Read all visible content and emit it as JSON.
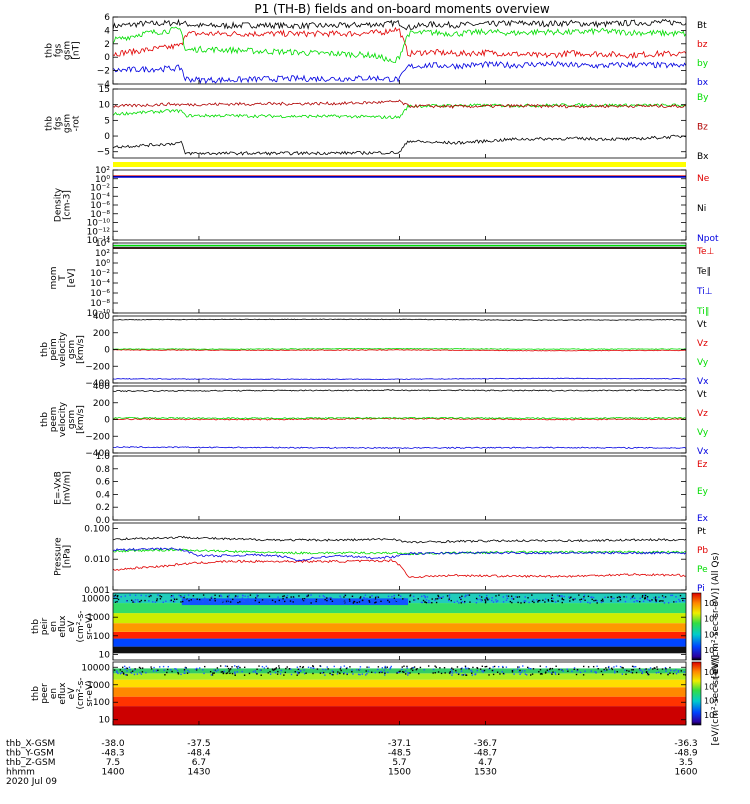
{
  "title": "P1 (TH-B) fields and on-board moments overview",
  "chart_data": [
    {
      "id": "fgs",
      "type": "line",
      "ylabel": [
        "thb",
        "fgs",
        "gsm",
        "[nT]"
      ],
      "ylim": [
        -4,
        6
      ],
      "yticks": [
        -4,
        -2,
        0,
        2,
        4,
        6
      ],
      "ytick_labels": [
        "−4",
        "−2",
        "0",
        "2",
        "4",
        "6"
      ],
      "series": [
        {
          "name": "Bt",
          "color": "#000000",
          "x": [
            1400,
            1405,
            1410,
            1415,
            1420,
            1424,
            1425,
            1430,
            1440,
            1450,
            1460,
            1470,
            1480,
            1490,
            1495,
            1498,
            1500,
            1503,
            1510,
            1520,
            1530,
            1540,
            1550,
            1560,
            1570,
            1580,
            1590,
            1600
          ],
          "y": [
            4.6,
            4.8,
            5.0,
            5.0,
            5.1,
            5.2,
            5.0,
            4.7,
            4.7,
            4.8,
            4.7,
            4.7,
            4.7,
            4.9,
            4.9,
            5.1,
            5.1,
            4.4,
            4.9,
            4.8,
            4.9,
            5.1,
            5.0,
            5.1,
            4.9,
            5.1,
            5.2,
            5.2
          ]
        },
        {
          "name": "bz",
          "color": "#e00000",
          "x": [
            1400,
            1410,
            1420,
            1424,
            1425,
            1430,
            1440,
            1450,
            1460,
            1470,
            1480,
            1490,
            1495,
            1498,
            1500,
            1503,
            1510,
            1520,
            1530,
            1540,
            1550,
            1560,
            1570,
            1580,
            1590,
            1600
          ],
          "y": [
            0.5,
            1.0,
            1.5,
            1.8,
            3.5,
            3.5,
            3.5,
            3.5,
            3.5,
            3.5,
            3.5,
            3.6,
            3.8,
            4.2,
            4.0,
            0.5,
            0.8,
            0.5,
            0.7,
            0.5,
            0.2,
            0.6,
            0.5,
            0.3,
            0.5,
            0.5
          ]
        },
        {
          "name": "by",
          "color": "#00dd00",
          "x": [
            1400,
            1410,
            1420,
            1424,
            1425,
            1430,
            1440,
            1450,
            1460,
            1470,
            1480,
            1490,
            1495,
            1498,
            1500,
            1503,
            1510,
            1520,
            1530,
            1540,
            1550,
            1560,
            1570,
            1580,
            1590,
            1600
          ],
          "y": [
            2.5,
            3.5,
            4.0,
            4.2,
            1.0,
            1.2,
            1.1,
            0.9,
            0.8,
            0.6,
            0.5,
            0.3,
            -0.2,
            -1.0,
            0.2,
            3.5,
            3.7,
            3.5,
            3.8,
            3.6,
            3.8,
            3.7,
            3.9,
            3.7,
            3.6,
            3.5
          ]
        },
        {
          "name": "bx",
          "color": "#0000e0",
          "x": [
            1400,
            1410,
            1420,
            1424,
            1425,
            1430,
            1440,
            1450,
            1460,
            1470,
            1480,
            1490,
            1495,
            1498,
            1500,
            1503,
            1510,
            1520,
            1530,
            1540,
            1550,
            1560,
            1570,
            1580,
            1590,
            1600
          ],
          "y": [
            -2.0,
            -1.8,
            -1.7,
            -1.6,
            -3.2,
            -3.4,
            -3.4,
            -3.3,
            -3.2,
            -3.2,
            -3.2,
            -3.1,
            -3.2,
            -3.3,
            -3.3,
            -1.4,
            -1.2,
            -1.3,
            -1.1,
            -1.2,
            -1.0,
            -1.2,
            -1.3,
            -1.1,
            -1.2,
            -1.3
          ]
        }
      ]
    },
    {
      "id": "fgs-gse",
      "type": "line",
      "ylabel": [
        "thb",
        "fgs",
        "gsm",
        "-rot"
      ],
      "ylim": [
        -7,
        15
      ],
      "yticks": [
        -5,
        0,
        5,
        10,
        15
      ],
      "ytick_labels": [
        "−5",
        "0",
        "5",
        "10",
        "15"
      ],
      "series": [
        {
          "name": "By",
          "color": "#00dd00",
          "x": [
            1400,
            1410,
            1420,
            1424,
            1425,
            1440,
            1460,
            1480,
            1495,
            1500,
            1503,
            1520,
            1540,
            1560,
            1580,
            1600
          ],
          "y": [
            7,
            7.5,
            8,
            8,
            6.5,
            6.5,
            6.3,
            6.3,
            6.0,
            6.0,
            9.5,
            9.8,
            9.7,
            9.9,
            9.8,
            9.8
          ]
        },
        {
          "name": "Bz",
          "color": "#b00000",
          "x": [
            1400,
            1410,
            1420,
            1424,
            1425,
            1440,
            1460,
            1480,
            1495,
            1500,
            1503,
            1520,
            1540,
            1560,
            1580,
            1600
          ],
          "y": [
            9.5,
            9.8,
            10.2,
            10.0,
            10.0,
            10.2,
            10.3,
            10.4,
            10.8,
            11.0,
            9.6,
            9.4,
            9.6,
            9.5,
            9.6,
            9.5
          ]
        },
        {
          "name": "Bx",
          "color": "#000000",
          "x": [
            1400,
            1410,
            1420,
            1424,
            1425,
            1440,
            1460,
            1480,
            1495,
            1500,
            1503,
            1510,
            1520,
            1540,
            1560,
            1580,
            1600
          ],
          "y": [
            -3.5,
            -3.0,
            -2.5,
            -2.0,
            -5.5,
            -5.5,
            -5.5,
            -5.4,
            -5.3,
            -5.3,
            -1.5,
            -2.0,
            -2.2,
            -1.0,
            -0.8,
            -1.0,
            0.0
          ]
        }
      ]
    },
    {
      "id": "density",
      "type": "line",
      "ylabel": [
        "Density",
        "[cm-3]"
      ],
      "log": true,
      "ylim": [
        1e-14,
        100
      ],
      "yticks": [
        100,
        1,
        0.01,
        0.0001,
        1e-06,
        1e-08,
        1e-10,
        1e-12,
        1e-14
      ],
      "ytick_labels": [
        "10²",
        "10⁰",
        "10⁻²",
        "10⁻⁴",
        "10⁻⁶",
        "10⁻⁸",
        "10⁻¹⁰",
        "10⁻¹²",
        "10⁻¹⁴"
      ],
      "series": [
        {
          "name": "Ne",
          "color": "#e00000",
          "x": [
            1400,
            1600
          ],
          "y": [
            4,
            4
          ]
        },
        {
          "name": "Ni",
          "color": "#000000",
          "x": [
            1400,
            1600
          ],
          "y": [
            3,
            3
          ]
        },
        {
          "name": "Npot",
          "color": "#0000e0",
          "x": [
            1400,
            1600
          ],
          "y": [
            2.5,
            2.5
          ]
        }
      ]
    },
    {
      "id": "temperature",
      "type": "line",
      "ylabel": [
        "mom",
        "T",
        "[eV]"
      ],
      "log": true,
      "ylim": [
        1e-10,
        10000
      ],
      "yticks": [
        10000,
        100,
        1,
        0.01,
        0.0001,
        1e-06,
        1e-08,
        1e-10
      ],
      "ytick_labels": [
        "10⁴",
        "10²",
        "10⁰",
        "10⁻²",
        "10⁻⁴",
        "10⁻⁶",
        "10⁻⁸",
        "10⁻¹⁰"
      ],
      "series": [
        {
          "name": "Te⊥",
          "color": "#e00000",
          "x": [
            1400,
            1600
          ],
          "y": [
            1000,
            1000
          ]
        },
        {
          "name": "Te∥",
          "color": "#000000",
          "x": [
            1400,
            1600
          ],
          "y": [
            1000,
            1000
          ]
        },
        {
          "name": "Ti⊥",
          "color": "#0000e0",
          "x": [
            1400,
            1600
          ],
          "y": [
            3000,
            3000
          ]
        },
        {
          "name": "Ti∥",
          "color": "#00dd00",
          "x": [
            1400,
            1600
          ],
          "y": [
            3000,
            3000
          ]
        }
      ]
    },
    {
      "id": "peim-velocity",
      "type": "line",
      "ylabel": [
        "thb",
        "peim",
        "velocity",
        "gsm",
        "[km/s]"
      ],
      "ylim": [
        -400,
        400
      ],
      "yticks": [
        -400,
        -200,
        0,
        200,
        400
      ],
      "ytick_labels": [
        "−400",
        "−200",
        "0",
        "200",
        "400"
      ],
      "series": [
        {
          "name": "Vt",
          "color": "#000000",
          "x": [
            1400,
            1450,
            1500,
            1550,
            1600
          ],
          "y": [
            355,
            360,
            360,
            350,
            355
          ]
        },
        {
          "name": "Vz",
          "color": "#e00000",
          "x": [
            1400,
            1450,
            1500,
            1550,
            1600
          ],
          "y": [
            -5,
            -10,
            -5,
            -15,
            -10
          ]
        },
        {
          "name": "Vy",
          "color": "#00dd00",
          "x": [
            1400,
            1450,
            1500,
            1550,
            1600
          ],
          "y": [
            5,
            5,
            10,
            5,
            5
          ]
        },
        {
          "name": "Vx",
          "color": "#0000e0",
          "x": [
            1400,
            1450,
            1500,
            1550,
            1600
          ],
          "y": [
            -350,
            -355,
            -355,
            -345,
            -350
          ]
        }
      ]
    },
    {
      "id": "peem-velocity",
      "type": "line",
      "ylabel": [
        "thb",
        "peem",
        "velocity",
        "gsm",
        "[km/s]"
      ],
      "ylim": [
        -400,
        400
      ],
      "yticks": [
        -400,
        -200,
        0,
        200,
        400
      ],
      "ytick_labels": [
        "−400",
        "−200",
        "0",
        "200",
        "400"
      ],
      "series": [
        {
          "name": "Vt",
          "color": "#000000",
          "x": [
            1400,
            1450,
            1500,
            1550,
            1600
          ],
          "y": [
            340,
            345,
            350,
            345,
            350
          ]
        },
        {
          "name": "Vz",
          "color": "#e00000",
          "x": [
            1400,
            1450,
            1500,
            1550,
            1600
          ],
          "y": [
            5,
            0,
            10,
            0,
            5
          ]
        },
        {
          "name": "Vy",
          "color": "#00dd00",
          "x": [
            1400,
            1450,
            1500,
            1550,
            1600
          ],
          "y": [
            20,
            15,
            20,
            15,
            20
          ]
        },
        {
          "name": "Vx",
          "color": "#0000e0",
          "x": [
            1400,
            1450,
            1500,
            1550,
            1600
          ],
          "y": [
            -330,
            -335,
            -340,
            -335,
            -340
          ]
        }
      ]
    },
    {
      "id": "efield",
      "type": "line",
      "ylabel": [
        "E=-VxB",
        "[mV/m]"
      ],
      "ylim": [
        0,
        1.0
      ],
      "yticks": [
        0,
        0.2,
        0.4,
        0.6,
        0.8,
        1.0
      ],
      "ytick_labels": [
        "0.0",
        "0.2",
        "0.4",
        "0.6",
        "0.8",
        "1.0"
      ],
      "series": [
        {
          "name": "Ez",
          "color": "#e00000",
          "x": [],
          "y": []
        },
        {
          "name": "Ey",
          "color": "#00dd00",
          "x": [],
          "y": []
        },
        {
          "name": "Ex",
          "color": "#0000e0",
          "x": [],
          "y": []
        }
      ]
    },
    {
      "id": "pressure",
      "type": "line",
      "ylabel": [
        "Pressure",
        "[nPa]"
      ],
      "log": true,
      "ylim": [
        0.001,
        0.15
      ],
      "yticks": [
        0.1,
        0.01,
        0.001
      ],
      "ytick_labels": [
        "0.100",
        "0.010",
        "0.001"
      ],
      "series": [
        {
          "name": "Pt",
          "color": "#000000",
          "x": [
            1400,
            1420,
            1424,
            1440,
            1460,
            1480,
            1498,
            1503,
            1520,
            1540,
            1560,
            1580,
            1600
          ],
          "y": [
            0.045,
            0.05,
            0.052,
            0.045,
            0.042,
            0.042,
            0.045,
            0.035,
            0.038,
            0.04,
            0.04,
            0.042,
            0.043
          ]
        },
        {
          "name": "Pb",
          "color": "#e00000",
          "x": [
            1400,
            1420,
            1424,
            1440,
            1460,
            1480,
            1498,
            1503,
            1520,
            1540,
            1560,
            1580,
            1600
          ],
          "y": [
            0.0045,
            0.0062,
            0.007,
            0.0085,
            0.0085,
            0.0085,
            0.009,
            0.0026,
            0.003,
            0.0028,
            0.0028,
            0.0032,
            0.003
          ]
        },
        {
          "name": "Pe",
          "color": "#00dd00",
          "x": [
            1400,
            1420,
            1424,
            1440,
            1460,
            1480,
            1498,
            1503,
            1520,
            1540,
            1560,
            1580,
            1600
          ],
          "y": [
            0.018,
            0.02,
            0.02,
            0.018,
            0.016,
            0.016,
            0.016,
            0.015,
            0.016,
            0.017,
            0.017,
            0.017,
            0.017
          ]
        },
        {
          "name": "Pi",
          "color": "#0000e0",
          "x": [
            1400,
            1420,
            1424,
            1430,
            1440,
            1450,
            1460,
            1465,
            1470,
            1480,
            1490,
            1498,
            1503,
            1520,
            1540,
            1560,
            1580,
            1600
          ],
          "y": [
            0.02,
            0.022,
            0.02,
            0.013,
            0.013,
            0.014,
            0.012,
            0.009,
            0.011,
            0.013,
            0.011,
            0.012,
            0.015,
            0.016,
            0.016,
            0.016,
            0.016,
            0.016
          ]
        }
      ]
    },
    {
      "id": "peir-spec",
      "type": "heatmap",
      "ylabel": [
        "thb",
        "peir",
        "en",
        "eflux",
        "eV",
        "(cm²-s-",
        "sr-eV)"
      ],
      "log": true,
      "ylim": [
        5,
        20000
      ],
      "yticks": [
        10000,
        1000,
        100,
        10
      ],
      "ytick_labels": [
        "10000",
        "1000",
        "100",
        "10"
      ],
      "colorbar_ticks": [
        "10⁸",
        "10⁶",
        "10⁴",
        "10²"
      ],
      "colorbar_label": "[eV/(cm²-sec-sr-eV)] (All Qs)"
    },
    {
      "id": "peer-spec",
      "type": "heatmap",
      "ylabel": [
        "thb",
        "peer",
        "en",
        "eflux",
        "eV",
        "(cm²-s-",
        "sr-eV)"
      ],
      "log": true,
      "ylim": [
        5,
        20000
      ],
      "yticks": [
        10000,
        1000,
        100,
        10
      ],
      "ytick_labels": [
        "10000",
        "1000",
        "100",
        "10"
      ],
      "colorbar_ticks": [
        "10⁸",
        "10⁶",
        "10⁴",
        "10²"
      ],
      "colorbar_label": "[eV/(cm²-sec-sr-eV)]"
    }
  ],
  "xaxis": {
    "range": [
      1400,
      1600
    ],
    "ticks": [
      1400,
      1430,
      1500,
      1530,
      1600
    ],
    "rows": [
      {
        "label": "thb_X-GSM",
        "values": [
          "-38.0",
          "-37.5",
          "-37.1",
          "-36.7",
          "-36.3"
        ]
      },
      {
        "label": "thb_Y-GSM",
        "values": [
          "-48.3",
          "-48.4",
          "-48.5",
          "-48.7",
          "-48.9"
        ]
      },
      {
        "label": "thb_Z-GSM",
        "values": [
          "7.5",
          "6.7",
          "5.7",
          "4.7",
          "3.5"
        ]
      },
      {
        "label": "hhmm",
        "values": [
          "1400",
          "1430",
          "1500",
          "1530",
          "1600"
        ]
      }
    ],
    "date": "2020 Jul 09"
  }
}
